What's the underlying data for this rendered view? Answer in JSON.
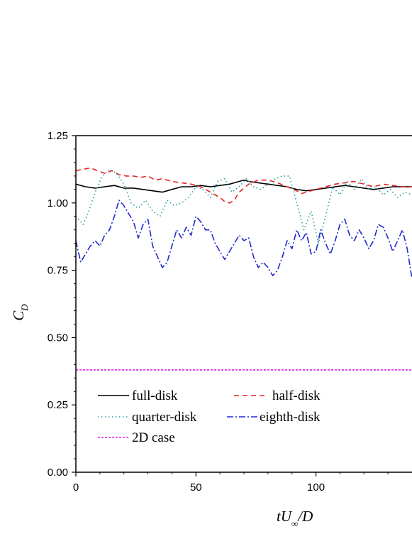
{
  "chart_data": {
    "type": "line",
    "xlabel": {
      "main": "tU",
      "sub": "∞",
      "tail": "/D"
    },
    "ylabel": {
      "main": "C",
      "sub": "D"
    },
    "xlim": [
      0,
      140
    ],
    "ylim": [
      0,
      1.25
    ],
    "xticks": [
      0,
      50,
      100
    ],
    "xtick_labels": [
      "0",
      "50",
      "100"
    ],
    "yticks": [
      0,
      0.25,
      0.5,
      0.75,
      1.0,
      1.25
    ],
    "ytick_labels": [
      "0.00",
      "0.25",
      "0.50",
      "0.75",
      "1.00",
      "1.25"
    ],
    "grid": false,
    "legend_position": "lower-left",
    "series": [
      {
        "name": "full-disk",
        "color": "#000000",
        "dash": "solid",
        "x": [
          0,
          4,
          8,
          12,
          16,
          20,
          24,
          28,
          32,
          36,
          40,
          44,
          48,
          52,
          56,
          60,
          64,
          68,
          70,
          72,
          76,
          80,
          84,
          88,
          92,
          96,
          100,
          104,
          108,
          112,
          116,
          120,
          124,
          128,
          132,
          136,
          140
        ],
        "y": [
          1.07,
          1.06,
          1.055,
          1.06,
          1.065,
          1.055,
          1.055,
          1.05,
          1.045,
          1.04,
          1.05,
          1.06,
          1.06,
          1.065,
          1.06,
          1.065,
          1.07,
          1.08,
          1.085,
          1.08,
          1.075,
          1.07,
          1.065,
          1.06,
          1.05,
          1.045,
          1.05,
          1.055,
          1.06,
          1.065,
          1.06,
          1.055,
          1.05,
          1.055,
          1.06,
          1.06,
          1.06
        ]
      },
      {
        "name": "half-disk",
        "color": "#e8201c",
        "dash": "dashed",
        "x": [
          0,
          3,
          6,
          9,
          12,
          15,
          18,
          21,
          24,
          27,
          30,
          33,
          36,
          40,
          44,
          48,
          52,
          56,
          60,
          62,
          64,
          66,
          68,
          72,
          76,
          80,
          84,
          88,
          92,
          94,
          96,
          100,
          104,
          108,
          112,
          116,
          120,
          124,
          128,
          132,
          136,
          140
        ],
        "y": [
          1.12,
          1.125,
          1.13,
          1.12,
          1.11,
          1.12,
          1.105,
          1.1,
          1.1,
          1.095,
          1.1,
          1.085,
          1.09,
          1.08,
          1.075,
          1.07,
          1.06,
          1.04,
          1.02,
          1.005,
          1.0,
          1.01,
          1.04,
          1.07,
          1.085,
          1.085,
          1.075,
          1.06,
          1.045,
          1.035,
          1.04,
          1.05,
          1.06,
          1.07,
          1.075,
          1.08,
          1.07,
          1.06,
          1.07,
          1.065,
          1.06,
          1.06
        ]
      },
      {
        "name": "quarter-disk",
        "color": "#2a9a9a",
        "dash": "dotted",
        "x": [
          0,
          3,
          5,
          8,
          11,
          14,
          17,
          20,
          23,
          26,
          29,
          32,
          35,
          38,
          41,
          44,
          47,
          50,
          53,
          56,
          59,
          62,
          65,
          68,
          71,
          74,
          77,
          80,
          83,
          86,
          89,
          92,
          95,
          98,
          101,
          104,
          107,
          110,
          113,
          116,
          119,
          122,
          125,
          128,
          131,
          134,
          137,
          140
        ],
        "y": [
          0.95,
          0.92,
          0.96,
          1.04,
          1.1,
          1.125,
          1.11,
          1.07,
          1.0,
          0.98,
          1.01,
          0.97,
          0.95,
          1.01,
          0.99,
          1.0,
          1.02,
          1.06,
          1.05,
          1.02,
          1.08,
          1.09,
          1.04,
          1.06,
          1.09,
          1.06,
          1.05,
          1.07,
          1.09,
          1.1,
          1.1,
          1.0,
          0.9,
          0.97,
          0.85,
          0.95,
          1.06,
          1.03,
          1.08,
          1.05,
          1.09,
          1.05,
          1.06,
          1.03,
          1.05,
          1.02,
          1.04,
          1.03
        ]
      },
      {
        "name": "eighth-disk",
        "color": "#1e2ad0",
        "dash": "dash-dot",
        "x": [
          0,
          2,
          4,
          6,
          8,
          10,
          12,
          14,
          16,
          18,
          20,
          22,
          24,
          26,
          28,
          30,
          32,
          34,
          36,
          38,
          40,
          42,
          44,
          46,
          48,
          50,
          52,
          54,
          56,
          58,
          60,
          62,
          64,
          66,
          68,
          70,
          72,
          74,
          76,
          78,
          80,
          82,
          84,
          86,
          88,
          90,
          92,
          94,
          96,
          98,
          100,
          102,
          104,
          106,
          108,
          110,
          112,
          114,
          116,
          118,
          120,
          122,
          124,
          126,
          128,
          130,
          132,
          134,
          136,
          138,
          140
        ],
        "y": [
          0.86,
          0.78,
          0.81,
          0.84,
          0.86,
          0.84,
          0.88,
          0.9,
          0.95,
          1.01,
          0.99,
          0.96,
          0.93,
          0.87,
          0.92,
          0.94,
          0.84,
          0.8,
          0.76,
          0.78,
          0.84,
          0.9,
          0.87,
          0.91,
          0.88,
          0.95,
          0.93,
          0.9,
          0.9,
          0.85,
          0.82,
          0.79,
          0.82,
          0.85,
          0.88,
          0.86,
          0.87,
          0.8,
          0.76,
          0.78,
          0.76,
          0.73,
          0.75,
          0.8,
          0.86,
          0.83,
          0.9,
          0.86,
          0.89,
          0.81,
          0.82,
          0.9,
          0.85,
          0.81,
          0.86,
          0.92,
          0.94,
          0.88,
          0.86,
          0.9,
          0.87,
          0.83,
          0.86,
          0.92,
          0.91,
          0.87,
          0.82,
          0.86,
          0.9,
          0.83,
          0.72
        ]
      },
      {
        "name": "2D case",
        "color": "#e020e0",
        "dash": "short-dash",
        "x": [
          0,
          140
        ],
        "y": [
          0.38,
          0.38
        ]
      }
    ]
  }
}
